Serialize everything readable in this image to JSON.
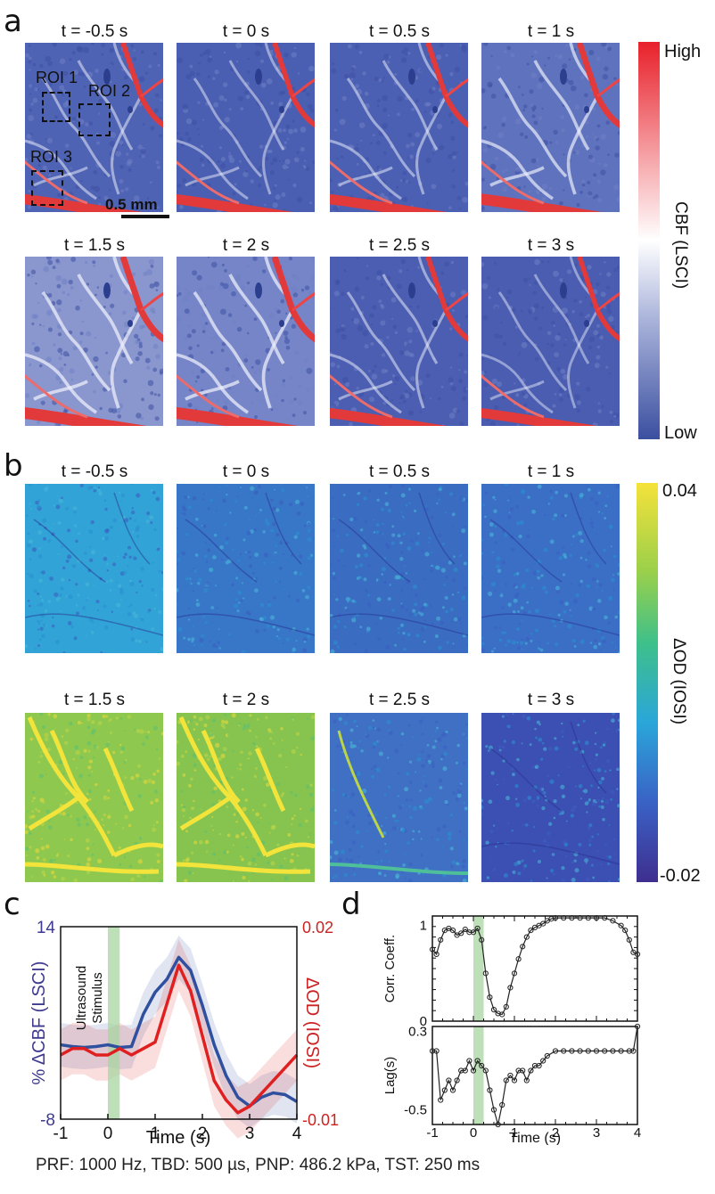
{
  "panel_a": {
    "letter": "a",
    "frames": [
      "t = -0.5 s",
      "t = 0 s",
      "t = 0.5 s",
      "t = 1 s",
      "t = 1.5 s",
      "t = 2 s",
      "t = 2.5 s",
      "t = 3 s"
    ],
    "roi_labels": [
      "ROI 1",
      "ROI 2",
      "ROI 3"
    ],
    "scale_bar": "0.5 mm",
    "colorbar": {
      "high": "High",
      "low": "Low",
      "title": "CBF (LSCI)",
      "colors": [
        "#3b4fa0",
        "#ffffff",
        "#e8202a"
      ]
    }
  },
  "panel_b": {
    "letter": "b",
    "frames": [
      "t = -0.5 s",
      "t = 0 s",
      "t = 0.5 s",
      "t = 1 s",
      "t = 1.5 s",
      "t = 2 s",
      "t = 2.5 s",
      "t = 3 s"
    ],
    "colorbar": {
      "high": "0.04",
      "low": "-0.02",
      "title": "ΔOD (IOSI)",
      "colors": [
        "#3e2f8f",
        "#2aa6d9",
        "#3fc08a",
        "#f5e23a"
      ]
    }
  },
  "panel_c": {
    "letter": "c",
    "stimulus_label": [
      "Ultrasound",
      "Stimulus"
    ],
    "xlabel": "Time (s)",
    "ylabel_left": "% ΔCBF (LSCI)",
    "ylabel_right": "ΔOD (IOSI)",
    "xticks": [
      "-1",
      "0",
      "1",
      "2",
      "3",
      "4"
    ],
    "yticks_left": [
      "14",
      "-8"
    ],
    "yticks_right": [
      "0.02",
      "-0.01"
    ]
  },
  "panel_d": {
    "letter": "d",
    "xlabel": "Time (s)",
    "top_ylabel": "Corr. Coeff.",
    "bottom_ylabel": "Lag(s)",
    "xticks": [
      "-1",
      "0",
      "1",
      "2",
      "3",
      "4"
    ],
    "top_yticks": [
      "1",
      "0"
    ],
    "bottom_yticks": [
      "0.3",
      "-0.5"
    ]
  },
  "caption": "PRF: 1000 Hz, TBD: 500 µs, PNP: 486.2 kPa, TST: 250 ms",
  "chart_data": [
    {
      "type": "line",
      "x": [
        -1,
        -0.75,
        -0.5,
        -0.25,
        0,
        0.25,
        0.5,
        0.75,
        1,
        1.25,
        1.5,
        1.75,
        2,
        2.25,
        2.5,
        2.75,
        3,
        3.25,
        3.5,
        3.75,
        4
      ],
      "series": [
        {
          "name": "% ΔCBF (LSCI)",
          "color": "#2f4f9f",
          "axis": "left",
          "values": [
            0.5,
            0.3,
            0.2,
            0.3,
            0.5,
            0.2,
            0.3,
            4,
            6.5,
            8,
            10.5,
            9,
            5,
            0.5,
            -3,
            -5.5,
            -6.5,
            -5.5,
            -5,
            -5.2,
            -6
          ]
        },
        {
          "name": "ΔOD (IOSI)",
          "color": "#e02020",
          "axis": "right",
          "values": [
            0,
            0.001,
            0.001,
            0,
            0,
            0.001,
            0,
            0.001,
            0.002,
            0.008,
            0.014,
            0.01,
            0.003,
            -0.004,
            -0.007,
            -0.009,
            -0.008,
            -0.006,
            -0.004,
            -0.002,
            0
          ]
        }
      ],
      "ylim_left": [
        -8,
        14
      ],
      "ylim_right": [
        -0.01,
        0.02
      ],
      "xlim": [
        -1,
        4
      ],
      "stimulus": [
        0,
        0.25
      ]
    },
    {
      "type": "line",
      "x": [
        -1,
        -0.9,
        -0.8,
        -0.7,
        -0.6,
        -0.5,
        -0.4,
        -0.3,
        -0.2,
        -0.1,
        0,
        0.1,
        0.2,
        0.3,
        0.4,
        0.5,
        0.6,
        0.7,
        0.8,
        0.9,
        1,
        1.1,
        1.2,
        1.3,
        1.4,
        1.5,
        1.6,
        1.7,
        1.8,
        1.9,
        2,
        2.2,
        2.4,
        2.6,
        2.8,
        3,
        3.2,
        3.4,
        3.6,
        3.7,
        3.8,
        3.9,
        4
      ],
      "series": [
        {
          "name": "Corr. Coeff.",
          "values": [
            0.75,
            0.7,
            0.85,
            0.95,
            0.97,
            0.95,
            0.9,
            0.92,
            0.96,
            0.93,
            0.93,
            0.97,
            0.85,
            0.5,
            0.25,
            0.12,
            0.08,
            0.07,
            0.15,
            0.35,
            0.5,
            0.65,
            0.78,
            0.88,
            0.95,
            0.98,
            1.0,
            1.02,
            1.05,
            1.07,
            1.08,
            1.08,
            1.08,
            1.08,
            1.08,
            1.08,
            1.08,
            1.05,
            1.0,
            0.95,
            0.85,
            0.72,
            0.7
          ]
        }
      ],
      "ylim": [
        0,
        1.1
      ],
      "xlim": [
        -1,
        4
      ],
      "stimulus": [
        0,
        0.25
      ]
    },
    {
      "type": "line",
      "x": [
        -1,
        -0.9,
        -0.8,
        -0.7,
        -0.6,
        -0.5,
        -0.4,
        -0.3,
        -0.2,
        -0.1,
        0,
        0.1,
        0.2,
        0.3,
        0.4,
        0.5,
        0.6,
        0.7,
        0.8,
        0.9,
        1,
        1.1,
        1.2,
        1.3,
        1.4,
        1.5,
        1.6,
        1.7,
        1.8,
        2,
        2.2,
        2.4,
        2.6,
        2.8,
        3,
        3.2,
        3.4,
        3.6,
        3.8,
        3.9,
        4
      ],
      "series": [
        {
          "name": "Lag(s)",
          "values": [
            0.1,
            0.1,
            -0.4,
            -0.3,
            -0.2,
            -0.3,
            -0.2,
            -0.1,
            -0.1,
            0,
            -0.1,
            0,
            -0.05,
            -0.1,
            -0.3,
            -0.5,
            -0.65,
            -0.45,
            -0.2,
            -0.15,
            -0.2,
            -0.1,
            -0.1,
            -0.2,
            -0.1,
            -0.05,
            -0.05,
            0,
            0.05,
            0.1,
            0.1,
            0.1,
            0.1,
            0.1,
            0.1,
            0.1,
            0.1,
            0.1,
            0.1,
            0.1,
            0.35
          ]
        }
      ],
      "ylim": [
        -0.65,
        0.35
      ],
      "xlim": [
        -1,
        4
      ],
      "stimulus": [
        0,
        0.25
      ]
    }
  ]
}
